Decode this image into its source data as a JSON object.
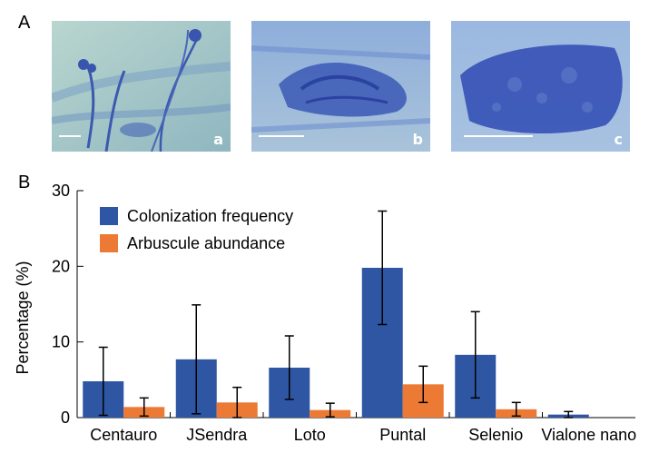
{
  "panel_a_label": "A",
  "panel_b_label": "B",
  "micrographs": [
    {
      "label": "a"
    },
    {
      "label": "b"
    },
    {
      "label": "c"
    }
  ],
  "colors": {
    "colonization": "#2e56a3",
    "arbuscule": "#ec7a35",
    "micro_bg": "#a9c9c9",
    "stain": "#2f49b8"
  },
  "chart_data": {
    "type": "bar",
    "categories": [
      "Centauro",
      "JSendra",
      "Loto",
      "Puntal",
      "Selenio",
      "Vialone nano"
    ],
    "series": [
      {
        "name": "Colonization frequency",
        "values": [
          4.8,
          7.7,
          6.6,
          19.8,
          8.3,
          0.4
        ],
        "errors": [
          4.5,
          7.2,
          4.2,
          7.5,
          5.7,
          0.4
        ]
      },
      {
        "name": "Arbuscule abundance",
        "values": [
          1.4,
          2.0,
          1.0,
          4.4,
          1.1,
          0.0
        ],
        "errors": [
          1.2,
          2.0,
          0.9,
          2.4,
          0.9,
          0.0
        ]
      }
    ],
    "ylabel": "Percentage (%)",
    "xlabel": "",
    "ylim": [
      0,
      30
    ],
    "yticks": [
      "0",
      "10",
      "20",
      "30"
    ],
    "legend_position": "top-left",
    "grid": false
  }
}
